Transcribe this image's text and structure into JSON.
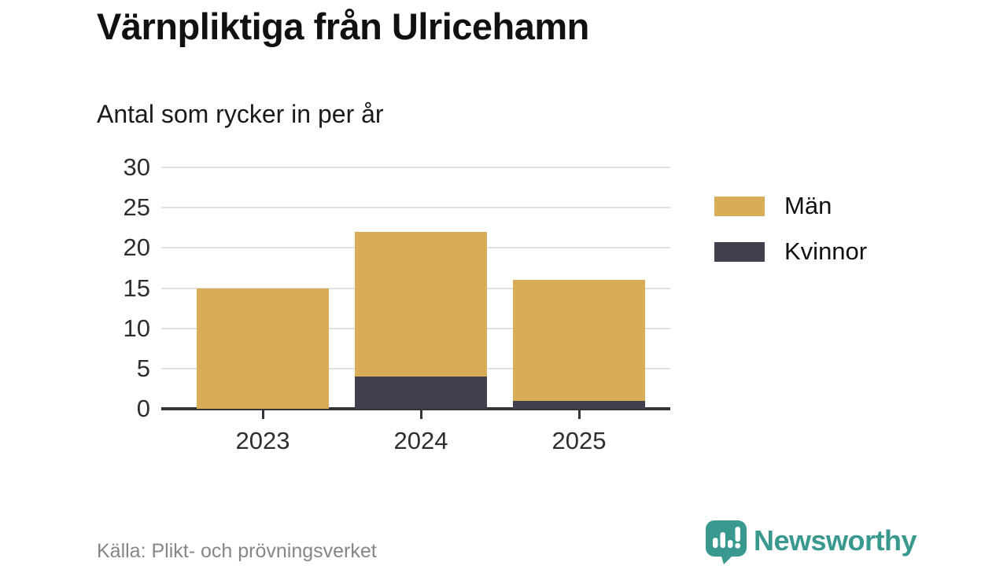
{
  "chart_data": {
    "type": "bar",
    "stacked": true,
    "title": "Värnpliktiga från Ulricehamn",
    "subtitle": "Antal som rycker in per år",
    "categories": [
      "2023",
      "2024",
      "2025"
    ],
    "series": [
      {
        "name": "Män",
        "color": "#d9ac57",
        "values": [
          15,
          18,
          15
        ]
      },
      {
        "name": "Kvinnor",
        "color": "#42404e",
        "values": [
          0,
          4,
          1
        ]
      }
    ],
    "stack_totals": [
      15,
      22,
      16
    ],
    "xlabel": "",
    "ylabel": "",
    "ylim": [
      0,
      30
    ],
    "yticks": [
      0,
      5,
      10,
      15,
      20,
      25,
      30
    ],
    "grid": true,
    "legend_position": "right"
  },
  "colors": {
    "axis": "#35343b",
    "grid": "#e0e0e0",
    "brand_teal": "#3a998f",
    "source_gray": "#868686"
  },
  "footer": {
    "source": "Källa: Plikt- och prövningsverket",
    "brand": "Newsworthy"
  }
}
